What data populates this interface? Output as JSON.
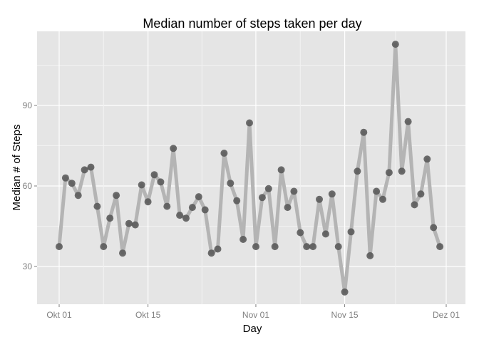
{
  "chart_data": {
    "type": "line",
    "title": "Median number of steps taken per day",
    "xlabel": "Day",
    "ylabel": "Median # of Steps",
    "x_start": "2012-10-01",
    "x_ticks": [
      {
        "label": "Okt 01",
        "date": "2012-10-01"
      },
      {
        "label": "Okt 15",
        "date": "2012-10-15"
      },
      {
        "label": "Nov 01",
        "date": "2012-11-01"
      },
      {
        "label": "Nov 15",
        "date": "2012-11-15"
      },
      {
        "label": "Dez 01",
        "date": "2012-12-01"
      }
    ],
    "y_ticks": [
      30,
      60,
      90
    ],
    "ylim": [
      15,
      118
    ],
    "grid": true,
    "series": [
      {
        "values": [
          37.4,
          63,
          61,
          56.5,
          66,
          67,
          52.4,
          37.4,
          48,
          56.5,
          35,
          46,
          45.5,
          60.4,
          54.1,
          64.2,
          61.5,
          52.4,
          74,
          49.1,
          48,
          52,
          56,
          51.1,
          35,
          36.5,
          72.2,
          61,
          54.5,
          40.1,
          83.5,
          37.4,
          55.7,
          59,
          37.4,
          66,
          52,
          58,
          42.6,
          37.4,
          37.4,
          55,
          42.1,
          57,
          37.4,
          20.5,
          42.9,
          65.5,
          80,
          34,
          58,
          55,
          65,
          112.8,
          65.5,
          84,
          53,
          57,
          70,
          44.5,
          37.4
        ]
      }
    ],
    "colors": {
      "panel": "#e5e5e5",
      "grid_major": "#ffffff",
      "grid_minor": "#f2f2f2",
      "line": "#b4b4b4",
      "point": "#555555"
    }
  }
}
